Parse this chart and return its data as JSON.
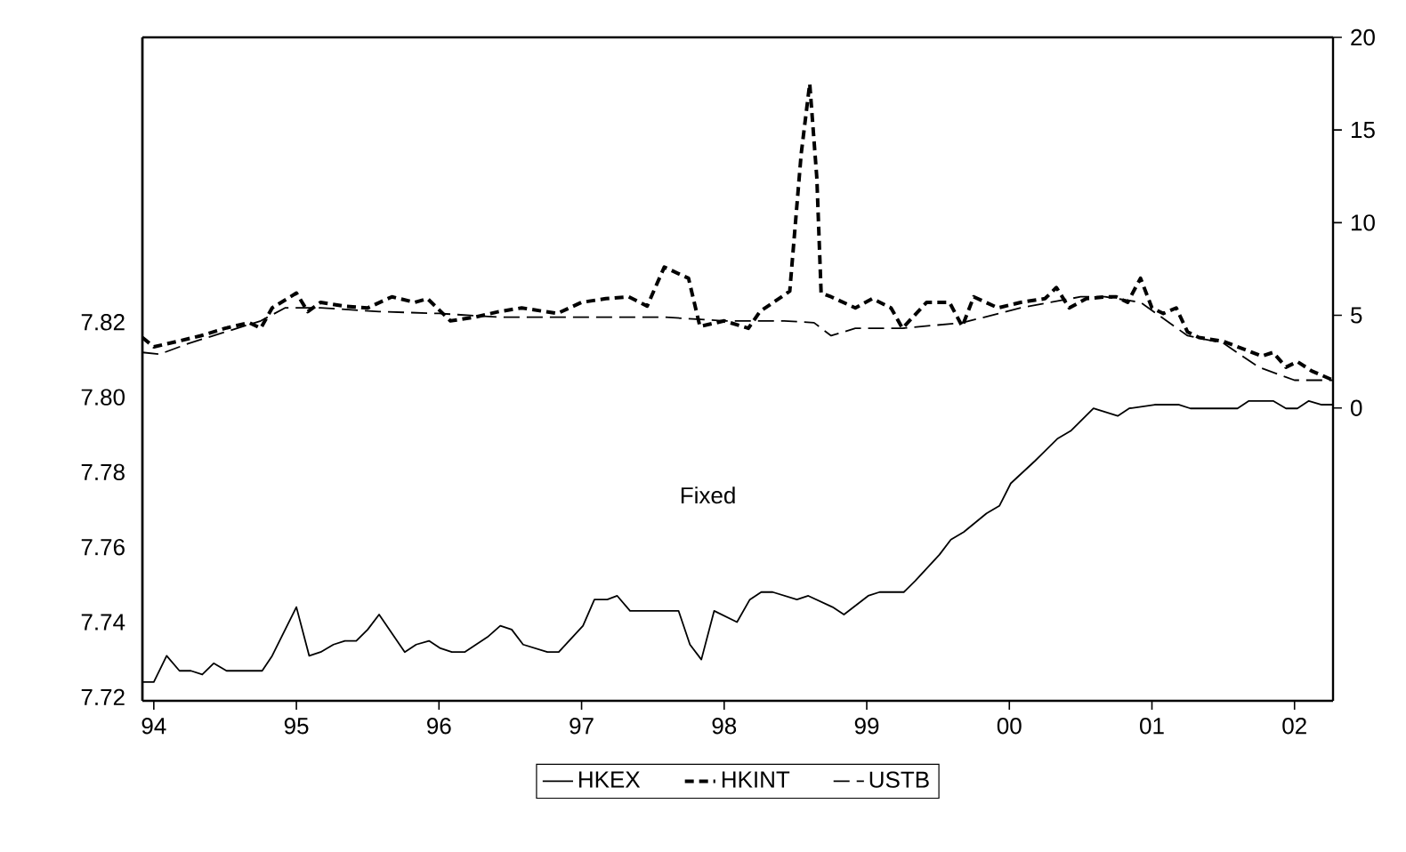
{
  "chart_data": {
    "type": "line",
    "xlim": [
      1993.92,
      2002.27
    ],
    "xticks": [
      {
        "value": 1994,
        "label": "94"
      },
      {
        "value": 1995,
        "label": "95"
      },
      {
        "value": 1996,
        "label": "96"
      },
      {
        "value": 1997,
        "label": "97"
      },
      {
        "value": 1998,
        "label": "98"
      },
      {
        "value": 1999,
        "label": "99"
      },
      {
        "value": 2000,
        "label": "00"
      },
      {
        "value": 2001,
        "label": "01"
      },
      {
        "value": 2002,
        "label": "02"
      }
    ],
    "ylim": [
      7.719,
      7.896
    ],
    "yticks": [
      7.72,
      7.74,
      7.76,
      7.78,
      {
        "value": 7.8,
        "label": "7.80"
      },
      7.82
    ],
    "y2lim": [
      -15.8,
      20
    ],
    "y2ticks": [
      0,
      5,
      10,
      15,
      20
    ],
    "legend": "bottom",
    "annotations": [
      "Fixed"
    ],
    "series": [
      {
        "name": "HKEX",
        "color": "#000000",
        "line_style": "solid",
        "x": [
          1993.92,
          1994.0,
          1994.09,
          1994.18,
          1994.26,
          1994.34,
          1994.42,
          1994.51,
          1994.76,
          1994.83,
          1995.0,
          1995.09,
          1995.17,
          1995.26,
          1995.34,
          1995.42,
          1995.5,
          1995.58,
          1995.76,
          1995.84,
          1995.93,
          1996.01,
          1996.09,
          1996.18,
          1996.26,
          1996.34,
          1996.43,
          1996.51,
          1996.59,
          1996.76,
          1996.84,
          1997.01,
          1997.09,
          1997.18,
          1997.25,
          1997.34,
          1997.43,
          1997.51,
          1997.59,
          1997.68,
          1997.76,
          1997.84,
          1997.93,
          1998.09,
          1998.18,
          1998.26,
          1998.34,
          1998.51,
          1998.59,
          1998.76,
          1998.84,
          1999.01,
          1999.09,
          1999.26,
          1999.34,
          1999.51,
          1999.59,
          1999.68,
          1999.84,
          1999.93,
          2000.01,
          2000.18,
          2000.34,
          2000.43,
          2000.59,
          2000.76,
          2000.84,
          2001.02,
          2001.19,
          2001.27,
          2001.6,
          2001.68,
          2001.85,
          2001.94,
          2002.02,
          2002.1,
          2002.19,
          2002.27
        ],
        "values": [
          7.724,
          7.724,
          7.731,
          7.727,
          7.727,
          7.726,
          7.729,
          7.727,
          7.727,
          7.731,
          7.744,
          7.731,
          7.732,
          7.734,
          7.735,
          7.735,
          7.738,
          7.742,
          7.732,
          7.734,
          7.735,
          7.733,
          7.732,
          7.732,
          7.734,
          7.736,
          7.739,
          7.738,
          7.734,
          7.732,
          7.732,
          7.739,
          7.746,
          7.746,
          7.747,
          7.743,
          7.743,
          7.743,
          7.743,
          7.743,
          7.734,
          7.73,
          7.743,
          7.74,
          7.746,
          7.748,
          7.748,
          7.746,
          7.747,
          7.744,
          7.742,
          7.747,
          7.748,
          7.748,
          7.751,
          7.758,
          7.762,
          7.764,
          7.769,
          7.771,
          7.777,
          7.783,
          7.789,
          7.791,
          7.797,
          7.795,
          7.797,
          7.798,
          7.798,
          7.797,
          7.797,
          7.799,
          7.799,
          7.797,
          7.797,
          7.799,
          7.798,
          7.798
        ]
      },
      {
        "name": "HKINT",
        "color": "#000000",
        "line_style": "dashed",
        "axis": "y2",
        "x": [
          1993.92,
          1994.0,
          1994.17,
          1994.33,
          1994.5,
          1994.67,
          1994.75,
          1994.83,
          1995.0,
          1995.08,
          1995.17,
          1995.33,
          1995.5,
          1995.67,
          1995.83,
          1995.92,
          1996.08,
          1996.25,
          1996.42,
          1996.58,
          1996.83,
          1997.0,
          1997.17,
          1997.33,
          1997.46,
          1997.58,
          1997.75,
          1997.83,
          1998.0,
          1998.17,
          1998.25,
          1998.46,
          1998.54,
          1998.6,
          1998.65,
          1998.68,
          1998.75,
          1998.92,
          1999.04,
          1999.17,
          1999.25,
          1999.42,
          1999.58,
          1999.67,
          1999.75,
          1999.92,
          2000.08,
          2000.25,
          2000.33,
          2000.42,
          2000.54,
          2000.67,
          2000.75,
          2000.83,
          2000.92,
          2001.0,
          2001.08,
          2001.17,
          2001.25,
          2001.33,
          2001.5,
          2001.67,
          2001.77,
          2001.85,
          2001.94,
          2002.02,
          2002.12,
          2002.27
        ],
        "values": [
          3.8,
          3.3,
          3.6,
          3.9,
          4.3,
          4.6,
          4.3,
          5.4,
          6.2,
          5.2,
          5.7,
          5.5,
          5.4,
          6.0,
          5.7,
          5.9,
          4.7,
          4.9,
          5.2,
          5.4,
          5.1,
          5.7,
          5.9,
          6.0,
          5.5,
          7.6,
          7.0,
          4.4,
          4.7,
          4.3,
          5.2,
          6.3,
          13.7,
          17.5,
          12.4,
          6.2,
          6.0,
          5.4,
          5.9,
          5.4,
          4.3,
          5.7,
          5.7,
          4.4,
          6.0,
          5.4,
          5.7,
          5.9,
          6.5,
          5.4,
          5.9,
          6.0,
          6.0,
          5.7,
          7.0,
          5.4,
          5.1,
          5.4,
          4.1,
          3.8,
          3.6,
          3.1,
          2.8,
          3.0,
          2.2,
          2.5,
          2.0,
          1.5
        ]
      },
      {
        "name": "USTB",
        "color": "#000000",
        "line_style": "dashed",
        "axis": "y2",
        "x": [
          1993.92,
          1994.04,
          1994.25,
          1994.5,
          1994.75,
          1994.92,
          1995.17,
          1995.58,
          1996.0,
          1996.42,
          1996.83,
          1997.29,
          1997.58,
          1998.0,
          1998.42,
          1998.63,
          1998.75,
          1998.92,
          1999.25,
          1999.67,
          2000.08,
          2000.5,
          2000.67,
          2000.92,
          2001.25,
          2001.5,
          2001.75,
          2002.0,
          2002.27
        ],
        "values": [
          3.0,
          2.9,
          3.5,
          4.1,
          4.7,
          5.4,
          5.4,
          5.2,
          5.1,
          4.9,
          4.9,
          4.9,
          4.9,
          4.7,
          4.7,
          4.6,
          3.9,
          4.3,
          4.3,
          4.6,
          5.4,
          6.0,
          6.0,
          5.7,
          3.9,
          3.5,
          2.2,
          1.5,
          1.5
        ]
      }
    ]
  }
}
